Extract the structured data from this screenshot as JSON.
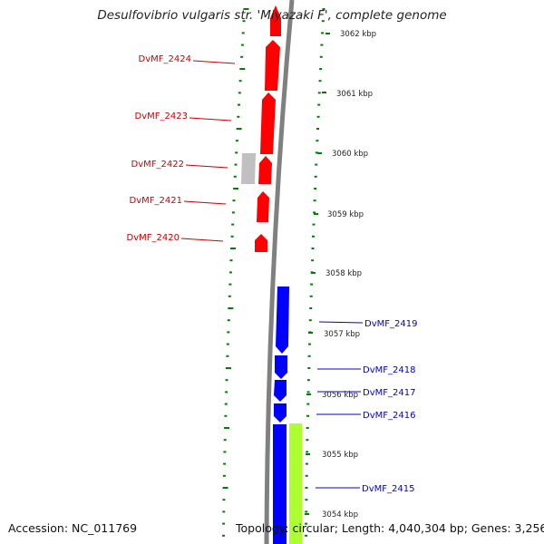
{
  "title": "Desulfovibrio vulgaris str. 'Miyazaki F', complete genome",
  "footer": {
    "accession": "Accession: NC_011769",
    "summary": "Topology: circular; Length: 4,040,304 bp; Genes: 3,256"
  },
  "colors": {
    "forward_gene": "#ff0000",
    "reverse_gene": "#0000ff",
    "other_forward": "#c0c0c0",
    "other_reverse": "#adff2f",
    "backbone": "#808080",
    "ticks": "#008000",
    "forward_label": "#cc0000",
    "reverse_label": "#0000cc"
  },
  "ticks": [
    {
      "label": "3062 kbp"
    },
    {
      "label": "3061 kbp"
    },
    {
      "label": "3060 kbp"
    },
    {
      "label": "3059 kbp"
    },
    {
      "label": "3058 kbp"
    },
    {
      "label": "3057 kbp"
    },
    {
      "label": "3056 kbp"
    },
    {
      "label": "3055 kbp"
    },
    {
      "label": "3054 kbp"
    }
  ],
  "forward_genes": [
    {
      "name": "DvMF_2424"
    },
    {
      "name": "DvMF_2423"
    },
    {
      "name": "DvMF_2422"
    },
    {
      "name": "DvMF_2421"
    },
    {
      "name": "DvMF_2420"
    }
  ],
  "reverse_genes": [
    {
      "name": "DvMF_2419"
    },
    {
      "name": "DvMF_2418"
    },
    {
      "name": "DvMF_2417"
    },
    {
      "name": "DvMF_2416"
    },
    {
      "name": "DvMF_2415"
    }
  ]
}
